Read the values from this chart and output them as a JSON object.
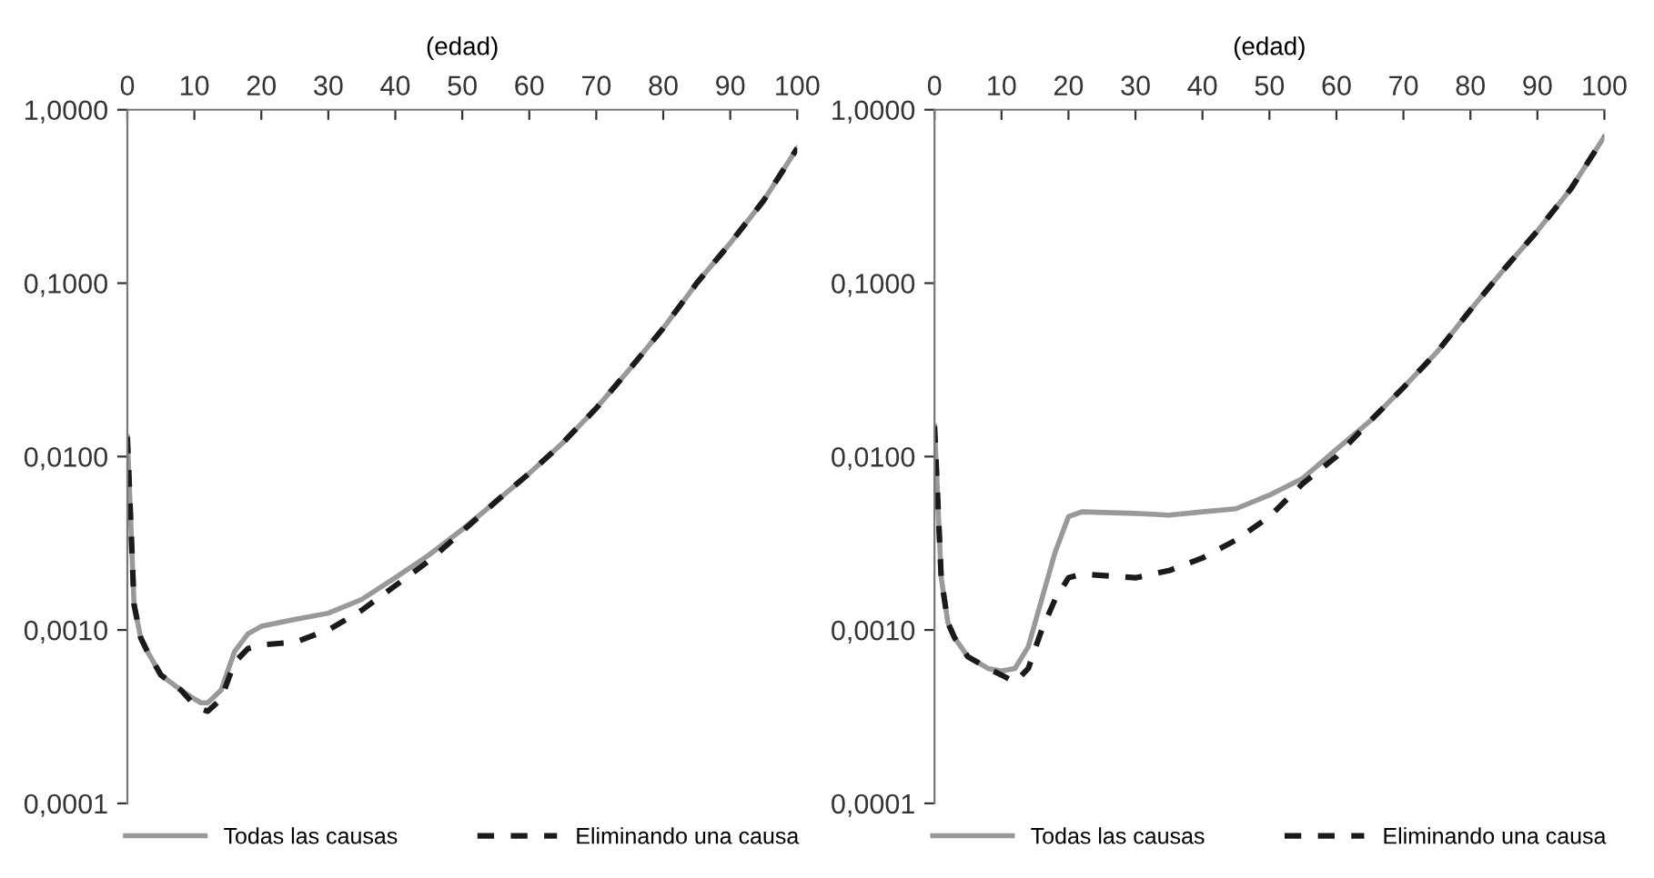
{
  "chart_data": [
    {
      "type": "line",
      "xlabel": "(edad)",
      "xlim": [
        0,
        100
      ],
      "xticks": [
        0,
        10,
        20,
        30,
        40,
        50,
        60,
        70,
        80,
        90,
        100
      ],
      "ylim": [
        0.0001,
        1
      ],
      "yticks": [
        {
          "value": 0.0001,
          "label": "0,0001"
        },
        {
          "value": 0.001,
          "label": "0,0010"
        },
        {
          "value": 0.01,
          "label": "0,0100"
        },
        {
          "value": 0.1,
          "label": "0,1000"
        },
        {
          "value": 1,
          "label": "1,0000"
        }
      ],
      "log": "y",
      "grid": false,
      "legend": "bottom",
      "x": [
        0,
        1,
        2,
        3,
        5,
        8,
        10,
        11,
        12,
        14,
        16,
        18,
        20,
        25,
        30,
        35,
        40,
        45,
        50,
        55,
        60,
        65,
        70,
        75,
        80,
        85,
        90,
        95,
        100
      ],
      "series": [
        {
          "name": "Todas las causas",
          "color": "#999999",
          "line_style": "solid",
          "values": [
            0.013,
            0.0014,
            0.0009,
            0.00075,
            0.00055,
            0.00045,
            0.0004,
            0.00038,
            0.00038,
            0.00045,
            0.00075,
            0.00095,
            0.00105,
            0.00115,
            0.00125,
            0.0015,
            0.002,
            0.0027,
            0.0038,
            0.0055,
            0.008,
            0.012,
            0.019,
            0.032,
            0.055,
            0.1,
            0.17,
            0.3,
            0.6
          ]
        },
        {
          "name": "Eliminando una causa",
          "color": "#1a1a1a",
          "line_style": "dashed",
          "values": [
            0.013,
            0.0014,
            0.0009,
            0.00075,
            0.00055,
            0.00045,
            0.00037,
            0.00035,
            0.00034,
            0.0004,
            0.00065,
            0.00078,
            0.00082,
            0.00085,
            0.001,
            0.0013,
            0.0018,
            0.0025,
            0.0037,
            0.0055,
            0.008,
            0.012,
            0.019,
            0.032,
            0.055,
            0.1,
            0.17,
            0.3,
            0.6
          ]
        }
      ]
    },
    {
      "type": "line",
      "xlabel": "(edad)",
      "xlim": [
        0,
        100
      ],
      "xticks": [
        0,
        10,
        20,
        30,
        40,
        50,
        60,
        70,
        80,
        90,
        100
      ],
      "ylim": [
        0.0001,
        1
      ],
      "yticks": [
        {
          "value": 0.0001,
          "label": "0,0001"
        },
        {
          "value": 0.001,
          "label": "0,0010"
        },
        {
          "value": 0.01,
          "label": "0,0100"
        },
        {
          "value": 0.1,
          "label": "0,1000"
        },
        {
          "value": 1,
          "label": "1,0000"
        }
      ],
      "log": "y",
      "grid": false,
      "legend": "bottom",
      "x": [
        0,
        1,
        2,
        3,
        5,
        8,
        10,
        12,
        14,
        16,
        18,
        20,
        22,
        30,
        35,
        40,
        45,
        50,
        55,
        60,
        65,
        70,
        75,
        80,
        85,
        90,
        95,
        100
      ],
      "series": [
        {
          "name": "Todas las causas",
          "color": "#999999",
          "line_style": "solid",
          "values": [
            0.015,
            0.002,
            0.0011,
            0.0009,
            0.0007,
            0.0006,
            0.00058,
            0.0006,
            0.0008,
            0.0015,
            0.0028,
            0.0045,
            0.0048,
            0.0047,
            0.0046,
            0.0048,
            0.005,
            0.006,
            0.0075,
            0.011,
            0.016,
            0.025,
            0.04,
            0.07,
            0.12,
            0.2,
            0.35,
            0.7
          ]
        },
        {
          "name": "Eliminando una causa",
          "color": "#1a1a1a",
          "line_style": "dashed",
          "values": [
            0.015,
            0.002,
            0.0011,
            0.0009,
            0.0007,
            0.0006,
            0.00055,
            0.0005,
            0.0006,
            0.001,
            0.0015,
            0.002,
            0.0021,
            0.002,
            0.0022,
            0.0026,
            0.0033,
            0.0045,
            0.007,
            0.01,
            0.016,
            0.025,
            0.04,
            0.07,
            0.12,
            0.2,
            0.35,
            0.7
          ]
        }
      ]
    }
  ]
}
